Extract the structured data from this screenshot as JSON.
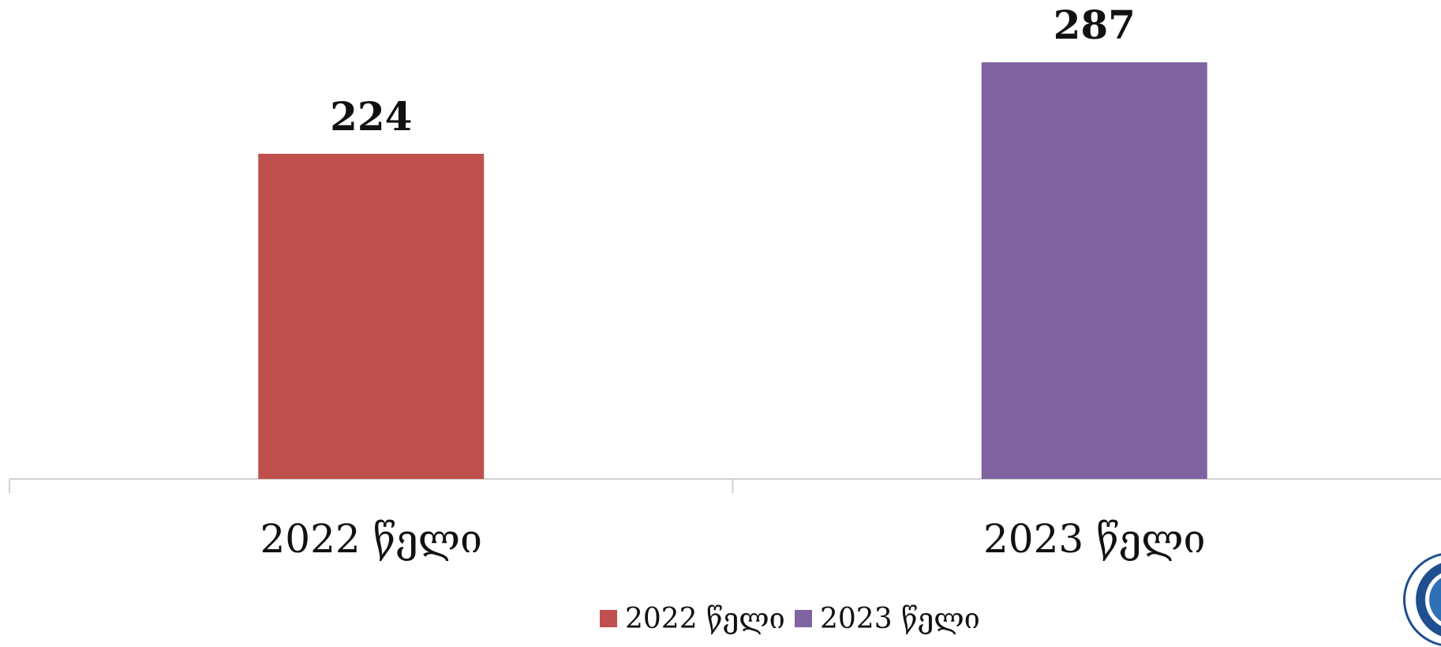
{
  "chart_data": {
    "type": "bar",
    "categories": [
      "2022 წელი",
      "2023 წელი"
    ],
    "values": [
      224,
      287
    ],
    "data_labels": [
      "224",
      "287"
    ],
    "colors": [
      "#c0504d",
      "#8064a2"
    ],
    "legend": {
      "placement": "bottom",
      "items": [
        "2022 წელი",
        "2023 წელი"
      ]
    },
    "grid": false,
    "ylim": [
      0,
      300
    ]
  },
  "logo": {
    "name": "seal-logo"
  }
}
